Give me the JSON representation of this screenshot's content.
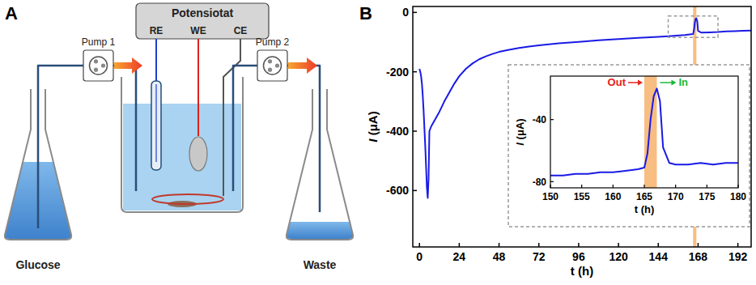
{
  "diagram": {
    "letter": "A",
    "potentiostat": {
      "label": "Potensiotat",
      "electrodes": [
        {
          "label": "RE",
          "color": "#1a3fd6"
        },
        {
          "label": "WE",
          "color": "#e0201b"
        },
        {
          "label": "CE",
          "color": "#555555"
        }
      ]
    },
    "pumps": [
      "Pump 1",
      "Pump 2"
    ],
    "flasks": [
      "Glucose",
      "Waste"
    ]
  },
  "chart_data": [
    {
      "letter": "B",
      "type": "line",
      "x_label": "t (h)",
      "y_label": "I (μA)",
      "xlim": [
        -4,
        200
      ],
      "xticks": [
        0,
        24,
        48,
        72,
        96,
        120,
        144,
        168,
        192
      ],
      "ylim": [
        -790,
        20
      ],
      "yticks": [
        -600,
        -400,
        -200,
        0
      ],
      "highlight": [
        165,
        167
      ],
      "series": [
        {
          "color": "#1a1ae6",
          "x": [
            0,
            0.5,
            1,
            1.5,
            2,
            2.5,
            3,
            3.5,
            4,
            4.5,
            5,
            5.5,
            6,
            7,
            8,
            10,
            12,
            15,
            18,
            21,
            24,
            28,
            32,
            36,
            40,
            44,
            48,
            54,
            60,
            66,
            72,
            84,
            96,
            108,
            120,
            132,
            144,
            150,
            155,
            160,
            165,
            165.5,
            166,
            166.5,
            167,
            167.5,
            168,
            170,
            175,
            180,
            185,
            190,
            195,
            200
          ],
          "values": [
            -190,
            -200,
            -215,
            -240,
            -280,
            -330,
            -390,
            -450,
            -520,
            -590,
            -625,
            -560,
            -400,
            -385,
            -375,
            -355,
            -335,
            -300,
            -270,
            -240,
            -215,
            -190,
            -172,
            -158,
            -148,
            -140,
            -133,
            -126,
            -120,
            -115,
            -111,
            -104,
            -99,
            -94,
            -90,
            -86,
            -82,
            -80,
            -78,
            -76,
            -73,
            -60,
            -36,
            -22,
            -20,
            -30,
            -62,
            -68,
            -67,
            -66,
            -64,
            -63,
            -62,
            -61
          ]
        }
      ]
    },
    {
      "type": "line",
      "x_label": "t (h)",
      "y_label": "I (μA)",
      "xlim": [
        150,
        180
      ],
      "xticks": [
        150,
        155,
        160,
        165,
        170,
        175,
        180
      ],
      "ylim": [
        -84,
        -12
      ],
      "yticks": [
        -80,
        -40
      ],
      "highlight": [
        165,
        167
      ],
      "annotations": [
        {
          "text": "Out",
          "color": "#e8201a"
        },
        {
          "text": "In",
          "color": "#18b83a"
        }
      ],
      "series": [
        {
          "color": "#1a1ae6",
          "x": [
            150,
            152,
            154,
            156,
            158,
            160,
            162,
            164,
            165,
            165.5,
            166,
            166.5,
            167,
            167.5,
            168,
            169,
            170,
            172,
            174,
            176,
            178,
            180
          ],
          "values": [
            -76,
            -76,
            -75,
            -75,
            -74,
            -74,
            -73,
            -72,
            -71,
            -62,
            -40,
            -25,
            -20,
            -28,
            -58,
            -68,
            -69,
            -69,
            -68,
            -69,
            -68,
            -68
          ]
        }
      ]
    }
  ]
}
